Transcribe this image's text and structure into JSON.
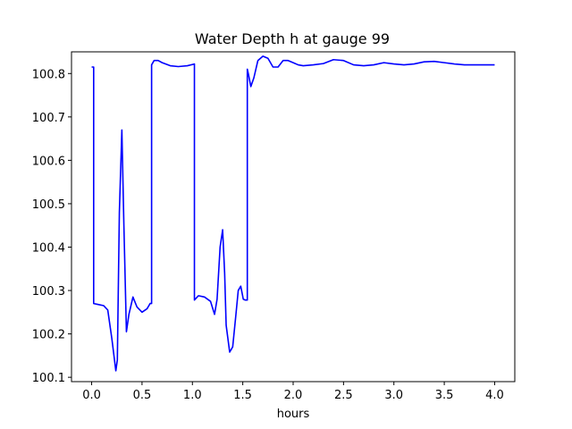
{
  "chart_data": {
    "type": "line",
    "title": "Water Depth h at gauge 99",
    "xlabel": "hours",
    "ylabel": "",
    "xlim": [
      -0.2,
      4.2
    ],
    "ylim": [
      100.09,
      100.85
    ],
    "xticks": [
      0.0,
      0.5,
      1.0,
      1.5,
      2.0,
      2.5,
      3.0,
      3.5,
      4.0
    ],
    "xtick_labels": [
      "0.0",
      "0.5",
      "1.0",
      "1.5",
      "2.0",
      "2.5",
      "3.0",
      "3.5",
      "4.0"
    ],
    "yticks": [
      100.1,
      100.2,
      100.3,
      100.4,
      100.5,
      100.6,
      100.7,
      100.8
    ],
    "ytick_labels": [
      "100.1",
      "100.2",
      "100.3",
      "100.4",
      "100.5",
      "100.6",
      "100.7",
      "100.8"
    ],
    "grid": false,
    "series": [
      {
        "color": "#0000ff",
        "x": [
          0.0,
          0.02,
          0.02,
          0.06,
          0.12,
          0.16,
          0.2,
          0.24,
          0.255,
          0.275,
          0.3,
          0.32,
          0.345,
          0.37,
          0.41,
          0.45,
          0.5,
          0.55,
          0.58,
          0.595,
          0.595,
          0.62,
          0.66,
          0.7,
          0.78,
          0.86,
          0.95,
          1.02,
          1.02,
          1.06,
          1.12,
          1.18,
          1.2,
          1.22,
          1.245,
          1.275,
          1.3,
          1.32,
          1.335,
          1.37,
          1.4,
          1.43,
          1.455,
          1.48,
          1.505,
          1.525,
          1.545,
          1.545,
          1.555,
          1.58,
          1.61,
          1.65,
          1.7,
          1.75,
          1.8,
          1.85,
          1.9,
          1.95,
          2.0,
          2.05,
          2.1,
          2.2,
          2.3,
          2.4,
          2.5,
          2.6,
          2.7,
          2.8,
          2.9,
          3.0,
          3.1,
          3.2,
          3.3,
          3.4,
          3.5,
          3.6,
          3.7,
          3.8,
          3.9,
          4.0
        ],
        "y": [
          100.815,
          100.815,
          100.27,
          100.268,
          100.265,
          100.255,
          100.19,
          100.115,
          100.14,
          100.48,
          100.67,
          100.45,
          100.205,
          100.245,
          100.285,
          100.262,
          100.25,
          100.258,
          100.27,
          100.27,
          100.82,
          100.83,
          100.83,
          100.825,
          100.818,
          100.816,
          100.818,
          100.822,
          100.278,
          100.288,
          100.285,
          100.275,
          100.26,
          100.245,
          100.28,
          100.4,
          100.44,
          100.34,
          100.22,
          100.158,
          100.17,
          100.24,
          100.3,
          100.31,
          100.28,
          100.278,
          100.278,
          100.81,
          100.8,
          100.77,
          100.79,
          100.83,
          100.84,
          100.835,
          100.815,
          100.815,
          100.83,
          100.83,
          100.825,
          100.82,
          100.818,
          100.82,
          100.823,
          100.832,
          100.83,
          100.82,
          100.818,
          100.82,
          100.825,
          100.822,
          100.82,
          100.822,
          100.827,
          100.828,
          100.825,
          100.822,
          100.82,
          100.82,
          100.82,
          100.82
        ]
      }
    ]
  }
}
